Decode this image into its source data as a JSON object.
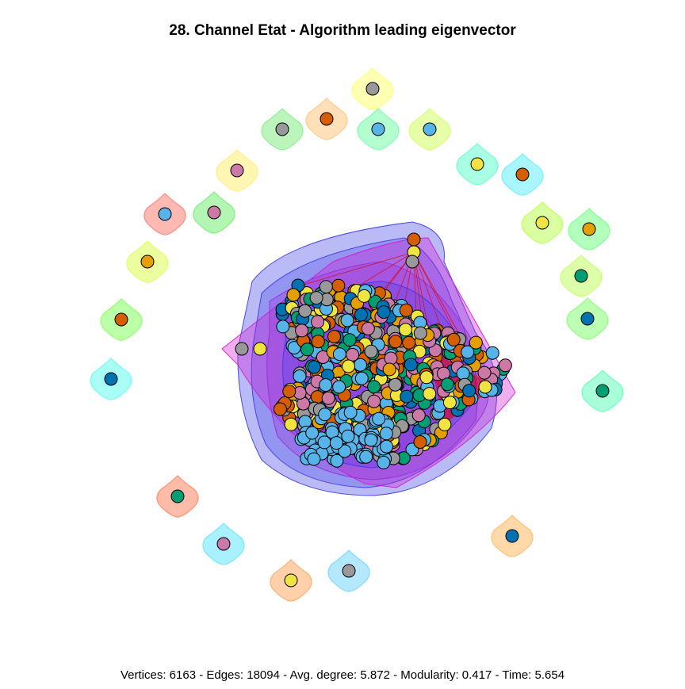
{
  "title": "28. Channel Etat - Algorithm leading eigenvector",
  "footer": "Vertices: 6163 - Edges: 18094 - Avg. degree: 5.872 - Modularity: 0.417 - Time: 5.654",
  "palette": {
    "node_colors": [
      "#E69F00",
      "#56B4E9",
      "#009E73",
      "#F0E442",
      "#0072B2",
      "#D55E00",
      "#CC79A7",
      "#999999"
    ],
    "hull_blue": "#3a3ae6",
    "hull_purple": "#9a2ad6",
    "hull_magenta": "#d21ad0",
    "edge_red": "#e00000"
  },
  "singletons": [
    {
      "node": "#999999",
      "hull": "#ffff80"
    },
    {
      "node": "#999999",
      "hull": "#90ee90"
    },
    {
      "node": "#D55E00",
      "hull": "#ffcc88"
    },
    {
      "node": "#56B4E9",
      "hull": "#80ffb0"
    },
    {
      "node": "#56B4E9",
      "hull": "#d8ff70"
    },
    {
      "node": "#CC79A7",
      "hull": "#fff080"
    },
    {
      "node": "#F0E442",
      "hull": "#70ffd0"
    },
    {
      "node": "#D55E00",
      "hull": "#70f0ff"
    },
    {
      "node": "#56B4E9",
      "hull": "#ff8a80"
    },
    {
      "node": "#CC79A7",
      "hull": "#80f080"
    },
    {
      "node": "#F0E442",
      "hull": "#c0ff60"
    },
    {
      "node": "#E69F00",
      "hull": "#80ff90"
    },
    {
      "node": "#E69F00",
      "hull": "#e0ff60"
    },
    {
      "node": "#009E73",
      "hull": "#c8ff70"
    },
    {
      "node": "#D55E00",
      "hull": "#90ff70"
    },
    {
      "node": "#0072B2",
      "hull": "#90ff80"
    },
    {
      "node": "#0072B2",
      "hull": "#70fff0"
    },
    {
      "node": "#009E73",
      "hull": "#70ffc0"
    },
    {
      "node": "#009E73",
      "hull": "#ff9070"
    },
    {
      "node": "#0072B2",
      "hull": "#ffc070"
    },
    {
      "node": "#CC79A7",
      "hull": "#70e8ff"
    },
    {
      "node": "#F0E442",
      "hull": "#ffb070"
    },
    {
      "node": "#999999",
      "hull": "#80d8ff"
    }
  ]
}
